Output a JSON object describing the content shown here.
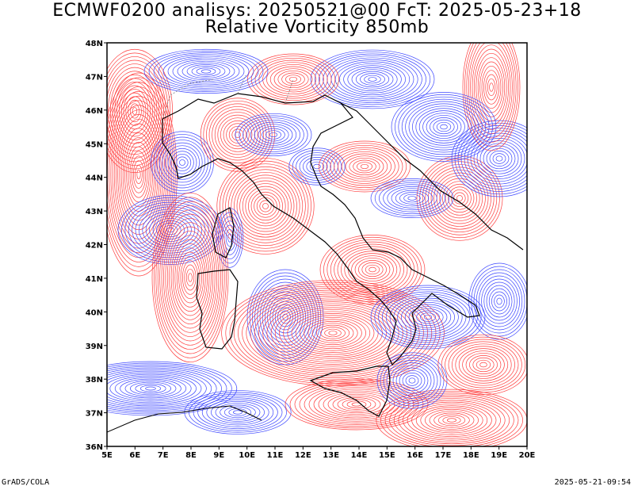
{
  "header": {
    "title_line1": "ECMWF0200 analisys: 20250521@00 FcT: 2025-05-23+18",
    "title_line2": "Relative Vorticity 850mb"
  },
  "footer": {
    "software": "GrADS/COLA",
    "timestamp": "2025-05-21-09:54"
  },
  "map": {
    "lon_range": [
      5,
      20
    ],
    "lat_range": [
      36,
      48
    ],
    "lon_labels": [
      "5E",
      "6E",
      "7E",
      "8E",
      "9E",
      "10E",
      "11E",
      "12E",
      "13E",
      "14E",
      "15E",
      "16E",
      "17E",
      "18E",
      "19E",
      "20E"
    ],
    "lat_labels": [
      "36N",
      "37N",
      "38N",
      "39N",
      "40N",
      "41N",
      "42N",
      "43N",
      "44N",
      "45N",
      "46N",
      "47N",
      "48N"
    ],
    "colors": {
      "positive": "#ff3c3c",
      "negative": "#3c46ff",
      "coast": "#000000"
    }
  }
}
